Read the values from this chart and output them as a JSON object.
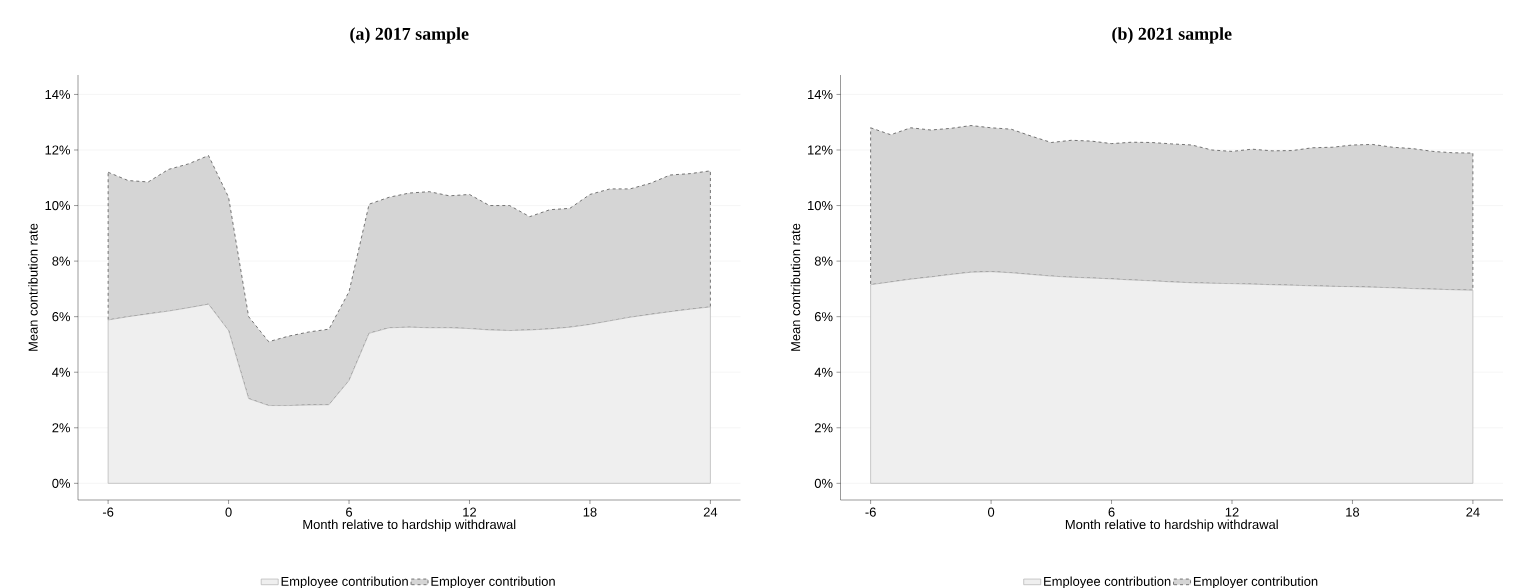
{
  "chart_data": [
    {
      "type": "area",
      "title": "(a) 2017 sample",
      "xlabel": "Month relative to hardship withdrawal",
      "ylabel": "Mean contribution rate",
      "stacked": true,
      "grid": "y",
      "legend": "bottom",
      "x": [
        -6,
        -5,
        -4,
        -3,
        -2,
        -1,
        0,
        1,
        2,
        3,
        4,
        5,
        6,
        7,
        8,
        9,
        10,
        11,
        12,
        13,
        14,
        15,
        16,
        17,
        18,
        19,
        20,
        21,
        22,
        23,
        24
      ],
      "series": [
        {
          "name": "Employee contribution",
          "color": "#efefef",
          "line_style": "solid",
          "values": [
            5.88,
            6.0,
            6.1,
            6.2,
            6.32,
            6.45,
            5.5,
            3.05,
            2.8,
            2.8,
            2.82,
            2.83,
            3.7,
            5.4,
            5.6,
            5.62,
            5.6,
            5.6,
            5.57,
            5.52,
            5.5,
            5.52,
            5.56,
            5.62,
            5.72,
            5.85,
            5.98,
            6.08,
            6.18,
            6.27,
            6.35
          ]
        },
        {
          "name": "Employer contribution",
          "color": "#d5d5d5",
          "line_style": "dashed",
          "values": [
            5.32,
            4.9,
            4.75,
            5.1,
            5.18,
            5.35,
            4.8,
            2.95,
            2.3,
            2.5,
            2.63,
            2.72,
            3.2,
            4.65,
            4.7,
            4.83,
            4.9,
            4.75,
            4.83,
            4.48,
            4.5,
            4.08,
            4.29,
            4.28,
            4.68,
            4.75,
            4.62,
            4.72,
            4.92,
            4.88,
            4.9
          ]
        }
      ],
      "xlim": [
        -7.5,
        25.5
      ],
      "ylim": [
        -0.6,
        14.7
      ],
      "xticks": [
        -6,
        0,
        6,
        12,
        18,
        24
      ],
      "yticks": [
        {
          "value": 0,
          "label": "0%"
        },
        {
          "value": 2,
          "label": "2%"
        },
        {
          "value": 4,
          "label": "4%"
        },
        {
          "value": 6,
          "label": "6%"
        },
        {
          "value": 8,
          "label": "8%"
        },
        {
          "value": 10,
          "label": "10%"
        },
        {
          "value": 12,
          "label": "12%"
        },
        {
          "value": 14,
          "label": "14%"
        }
      ]
    },
    {
      "type": "area",
      "title": "(b) 2021 sample",
      "xlabel": "Month relative to hardship withdrawal",
      "ylabel": "Mean contribution rate",
      "stacked": true,
      "grid": "y",
      "legend": "bottom",
      "x": [
        -6,
        -5,
        -4,
        -3,
        -2,
        -1,
        0,
        1,
        2,
        3,
        4,
        5,
        6,
        7,
        8,
        9,
        10,
        11,
        12,
        13,
        14,
        15,
        16,
        17,
        18,
        19,
        20,
        21,
        22,
        23,
        24
      ],
      "series": [
        {
          "name": "Employee contribution",
          "color": "#efefef",
          "line_style": "solid",
          "values": [
            7.15,
            7.25,
            7.35,
            7.43,
            7.52,
            7.6,
            7.62,
            7.58,
            7.52,
            7.46,
            7.42,
            7.39,
            7.36,
            7.32,
            7.29,
            7.25,
            7.22,
            7.2,
            7.19,
            7.17,
            7.15,
            7.13,
            7.11,
            7.09,
            7.08,
            7.06,
            7.04,
            7.01,
            6.99,
            6.97,
            6.95
          ]
        },
        {
          "name": "Employer contribution",
          "color": "#d5d5d5",
          "line_style": "dashed",
          "values": [
            5.65,
            5.3,
            5.45,
            5.29,
            5.26,
            5.28,
            5.18,
            5.17,
            4.98,
            4.81,
            4.93,
            4.93,
            4.87,
            4.96,
            4.98,
            4.97,
            4.96,
            4.8,
            4.76,
            4.86,
            4.82,
            4.85,
            4.97,
            5.01,
            5.1,
            5.14,
            5.06,
            5.04,
            4.96,
            4.93,
            4.94
          ]
        }
      ],
      "xlim": [
        -7.5,
        25.5
      ],
      "ylim": [
        -0.6,
        14.7
      ],
      "xticks": [
        -6,
        0,
        6,
        12,
        18,
        24
      ],
      "yticks": [
        {
          "value": 0,
          "label": "0%"
        },
        {
          "value": 2,
          "label": "2%"
        },
        {
          "value": 4,
          "label": "4%"
        },
        {
          "value": 6,
          "label": "6%"
        },
        {
          "value": 8,
          "label": "8%"
        },
        {
          "value": 10,
          "label": "10%"
        },
        {
          "value": 12,
          "label": "12%"
        },
        {
          "value": 14,
          "label": "14%"
        }
      ]
    }
  ]
}
